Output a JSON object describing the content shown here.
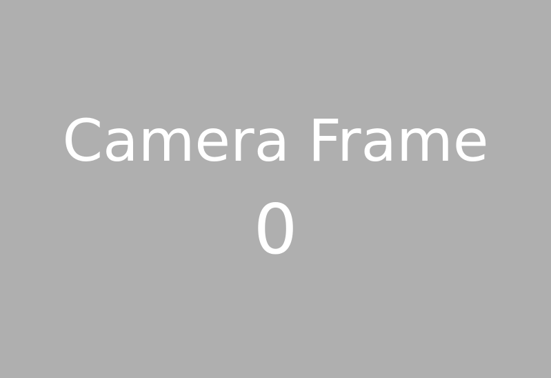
{
  "placeholder": {
    "title": "Camera Frame",
    "frame_number": "0",
    "background_color": "#afafaf",
    "text_color": "#ffffff"
  }
}
